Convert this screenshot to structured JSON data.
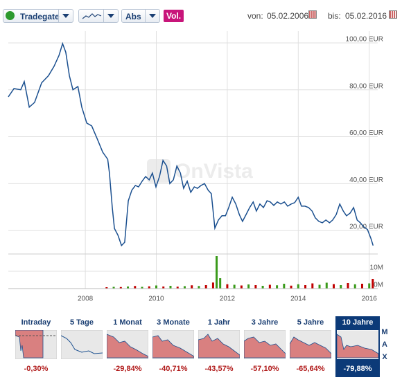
{
  "toolbar": {
    "exchange": "Tradegate",
    "scale": "Abs",
    "volume": "Vol.",
    "from_label": "von:",
    "from": "05.02.2006",
    "to_label": "bis:",
    "to": "05.02.2016"
  },
  "watermark": "OnVista",
  "chart_data": [
    {
      "type": "line",
      "color": "#1a4f8f",
      "grid": true,
      "xlim": [
        2005.83,
        2016.24
      ],
      "ylim": [
        10,
        105
      ],
      "xticks": [
        2008,
        2010,
        2012,
        2014,
        2016
      ],
      "yticks": [
        {
          "value": 20,
          "label": "20,00 EUR"
        },
        {
          "value": 40,
          "label": "40,00 EUR"
        },
        {
          "value": 60,
          "label": "60,00 EUR"
        },
        {
          "value": 80,
          "label": "80,00 EUR"
        },
        {
          "value": 100,
          "label": "100,00 EUR"
        }
      ],
      "x": [
        2005.83,
        2005.99,
        2006.18,
        2006.28,
        2006.42,
        2006.57,
        2006.77,
        2006.96,
        2007.12,
        2007.26,
        2007.36,
        2007.45,
        2007.55,
        2007.65,
        2007.79,
        2007.9,
        2008.04,
        2008.18,
        2008.33,
        2008.49,
        2008.63,
        2008.68,
        2008.76,
        2008.82,
        2008.92,
        2009.02,
        2009.11,
        2009.21,
        2009.31,
        2009.41,
        2009.5,
        2009.6,
        2009.7,
        2009.8,
        2009.89,
        2009.99,
        2010.09,
        2010.19,
        2010.29,
        2010.38,
        2010.48,
        2010.58,
        2010.68,
        2010.77,
        2010.87,
        2010.97,
        2011.07,
        2011.16,
        2011.26,
        2011.36,
        2011.46,
        2011.55,
        2011.65,
        2011.75,
        2011.85,
        2011.95,
        2012.04,
        2012.14,
        2012.24,
        2012.34,
        2012.43,
        2012.53,
        2012.63,
        2012.73,
        2012.82,
        2012.92,
        2013.02,
        2013.12,
        2013.21,
        2013.31,
        2013.41,
        2013.51,
        2013.61,
        2013.7,
        2013.8,
        2013.9,
        2014.0,
        2014.09,
        2014.19,
        2014.29,
        2014.39,
        2014.48,
        2014.58,
        2014.68,
        2014.78,
        2014.88,
        2014.97,
        2015.07,
        2015.17,
        2015.27,
        2015.36,
        2015.46,
        2015.56,
        2015.66,
        2015.75,
        2015.85,
        2015.95,
        2016.05,
        2016.11
      ],
      "values": [
        77,
        80.5,
        80,
        83.5,
        72.6,
        74.6,
        83,
        86,
        90,
        94.7,
        99.7,
        96,
        86,
        80,
        81.4,
        72.6,
        65.8,
        64.6,
        59.3,
        53.4,
        50.4,
        44.5,
        29.8,
        20.9,
        18,
        13.6,
        15,
        32.7,
        37.2,
        39.2,
        38.6,
        41,
        43,
        41.6,
        44.5,
        38.6,
        43,
        49.9,
        47.5,
        40,
        41.6,
        47.5,
        44.5,
        38,
        41,
        36.3,
        38.6,
        38,
        39.2,
        40,
        37.2,
        35.7,
        21,
        24.5,
        26.3,
        26.3,
        29.8,
        34.2,
        31.3,
        26.8,
        23.9,
        26.8,
        29.8,
        32.2,
        28.3,
        31.3,
        29.8,
        32.7,
        32.2,
        30.7,
        32.2,
        31.3,
        32.2,
        30.4,
        31.3,
        31.9,
        34.2,
        30.4,
        30.4,
        29.8,
        28.3,
        25.4,
        23.9,
        23.3,
        24.5,
        23.3,
        24.5,
        26.8,
        31.3,
        28.3,
        26.3,
        27.4,
        29.8,
        24.5,
        23.3,
        21.5,
        20.4,
        16.5,
        13.6
      ]
    },
    {
      "type": "bar",
      "xlim": [
        2005.83,
        2016.24
      ],
      "ylim": [
        0,
        20000000
      ],
      "yticks": [
        {
          "value": 0,
          "label": "0M"
        },
        {
          "value": 10000000,
          "label": "10M"
        }
      ],
      "x": [
        2008.6,
        2008.8,
        2009.0,
        2009.2,
        2009.4,
        2009.6,
        2009.8,
        2010.0,
        2010.2,
        2010.4,
        2010.6,
        2010.8,
        2011.0,
        2011.2,
        2011.4,
        2011.6,
        2011.7,
        2011.8,
        2012.0,
        2012.2,
        2012.4,
        2012.6,
        2012.8,
        2013.0,
        2013.2,
        2013.4,
        2013.6,
        2013.8,
        2014.0,
        2014.2,
        2014.4,
        2014.6,
        2014.8,
        2015.0,
        2015.2,
        2015.4,
        2015.6,
        2015.8,
        2016.0,
        2016.1
      ],
      "values": [
        800000,
        1000000,
        900000,
        1200000,
        1500000,
        1000000,
        1300000,
        1800000,
        1200000,
        1600000,
        1100000,
        1400000,
        1900000,
        1500000,
        2000000,
        3500000,
        18800000,
        6000000,
        2500000,
        2200000,
        1800000,
        2400000,
        2000000,
        1600000,
        2200000,
        1900000,
        2800000,
        1700000,
        2500000,
        2000000,
        3000000,
        2200000,
        3400000,
        2600000,
        2000000,
        3200000,
        2500000,
        2800000,
        3000000,
        5600000
      ],
      "colors": [
        "#c00000",
        "#3a9a1a",
        "#c00000",
        "#3a9a1a",
        "#c00000",
        "#3a9a1a",
        "#c00000",
        "#3a9a1a",
        "#c00000",
        "#3a9a1a",
        "#c00000",
        "#3a9a1a",
        "#c00000",
        "#3a9a1a",
        "#c00000",
        "#c00000",
        "#3a9a1a",
        "#3a9a1a",
        "#c00000",
        "#3a9a1a",
        "#c00000",
        "#3a9a1a",
        "#c00000",
        "#3a9a1a",
        "#c00000",
        "#3a9a1a",
        "#3a9a1a",
        "#c00000",
        "#3a9a1a",
        "#c00000",
        "#c00000",
        "#3a9a1a",
        "#3a9a1a",
        "#c00000",
        "#3a9a1a",
        "#c00000",
        "#3a9a1a",
        "#c00000",
        "#3a9a1a",
        "#c00000"
      ]
    }
  ],
  "ranges": [
    {
      "label": "Intraday",
      "change": "-0,30%"
    },
    {
      "label": "5 Tage"
    },
    {
      "label": "1 Monat",
      "change": "-29,84%"
    },
    {
      "label": "3 Monate",
      "change": "-40,71%"
    },
    {
      "label": "1 Jahr",
      "change": "-43,57%"
    },
    {
      "label": "3 Jahre",
      "change": "-57,10%"
    },
    {
      "label": "5 Jahre",
      "change": "-65,64%"
    },
    {
      "label": "10 Jahre",
      "change": "-79,88%",
      "selected": true
    }
  ],
  "max_label": "MAX"
}
